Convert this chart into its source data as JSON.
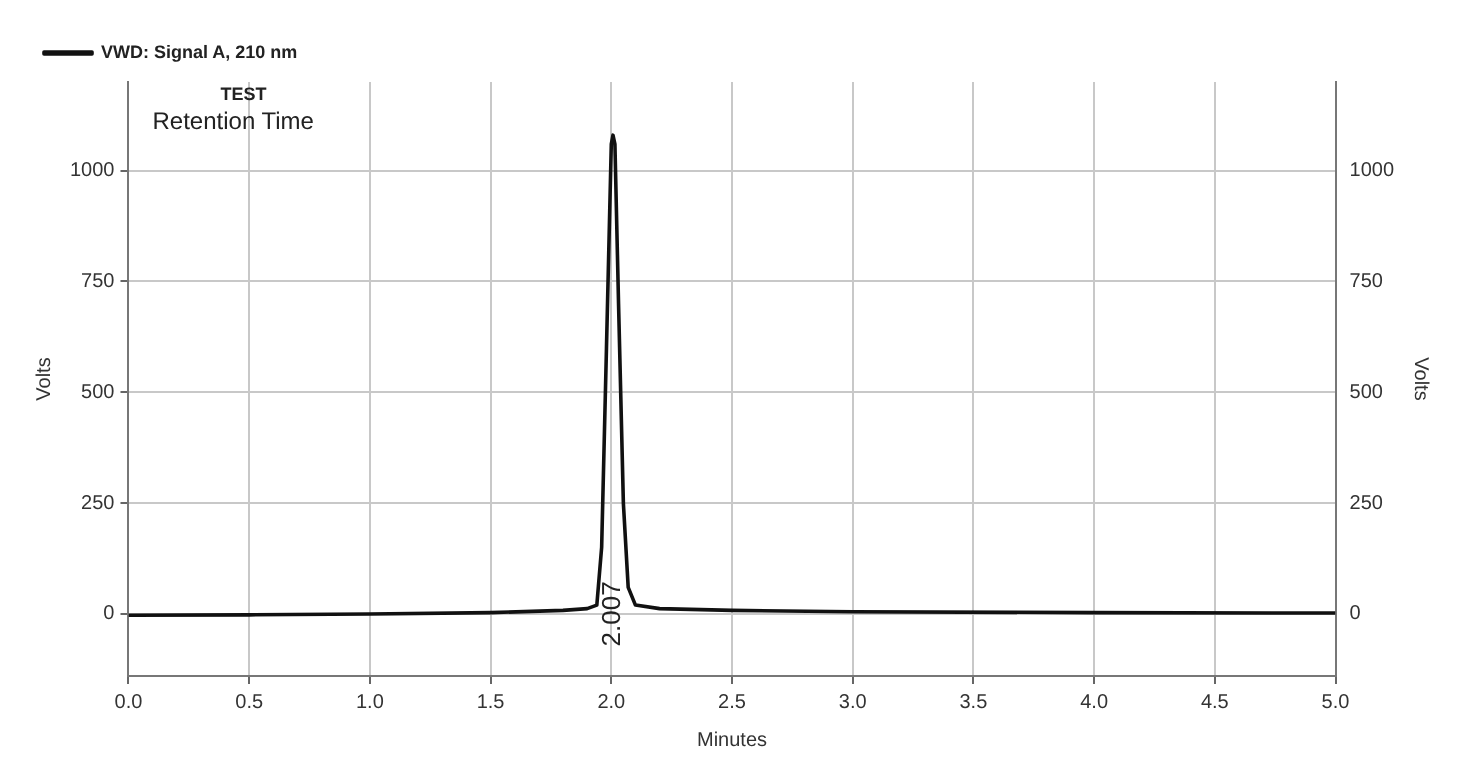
{
  "chart_data": {
    "type": "line",
    "xlabel": "Minutes",
    "ylabel": "Volts",
    "y2label": "Volts",
    "x": [
      0,
      0.5,
      1.0,
      1.5,
      1.8,
      1.9,
      1.94,
      1.96,
      1.98,
      2.0,
      2.007,
      2.015,
      2.03,
      2.05,
      2.07,
      2.1,
      2.2,
      2.5,
      3.0,
      4.0,
      5.0
    ],
    "series": [
      {
        "name": "VWD: Signal A, 210 nm",
        "color": "#111111",
        "values": [
          -3,
          -2,
          0,
          3,
          8,
          12,
          20,
          150,
          600,
          1060,
          1080,
          1060,
          700,
          250,
          60,
          20,
          12,
          8,
          5,
          3,
          2
        ]
      }
    ],
    "annotations": [
      "TEST",
      "Retention Time",
      "2.007"
    ],
    "xlim": [
      0,
      5
    ],
    "xticks": [
      {
        "value": 0,
        "label": "0.0"
      },
      {
        "value": 0.5,
        "label": "0.5"
      },
      {
        "value": 1,
        "label": "1.0"
      },
      {
        "value": 1.5,
        "label": "1.5"
      },
      {
        "value": 2,
        "label": "2.0"
      },
      {
        "value": 2.5,
        "label": "2.5"
      },
      {
        "value": 3,
        "label": "3.0"
      },
      {
        "value": 3.5,
        "label": "3.5"
      },
      {
        "value": 4,
        "label": "4.0"
      },
      {
        "value": 4.5,
        "label": "4.5"
      },
      {
        "value": 5,
        "label": "5.0"
      }
    ],
    "ylim": [
      -140,
      1200
    ],
    "yticks": [
      0,
      250,
      500,
      750,
      1000
    ],
    "y2lim": [
      -140,
      1200
    ],
    "y2ticks": [
      0,
      250,
      500,
      750,
      1000
    ],
    "grid": true,
    "legend": "top left",
    "marker": "none",
    "line_style": "solid"
  }
}
